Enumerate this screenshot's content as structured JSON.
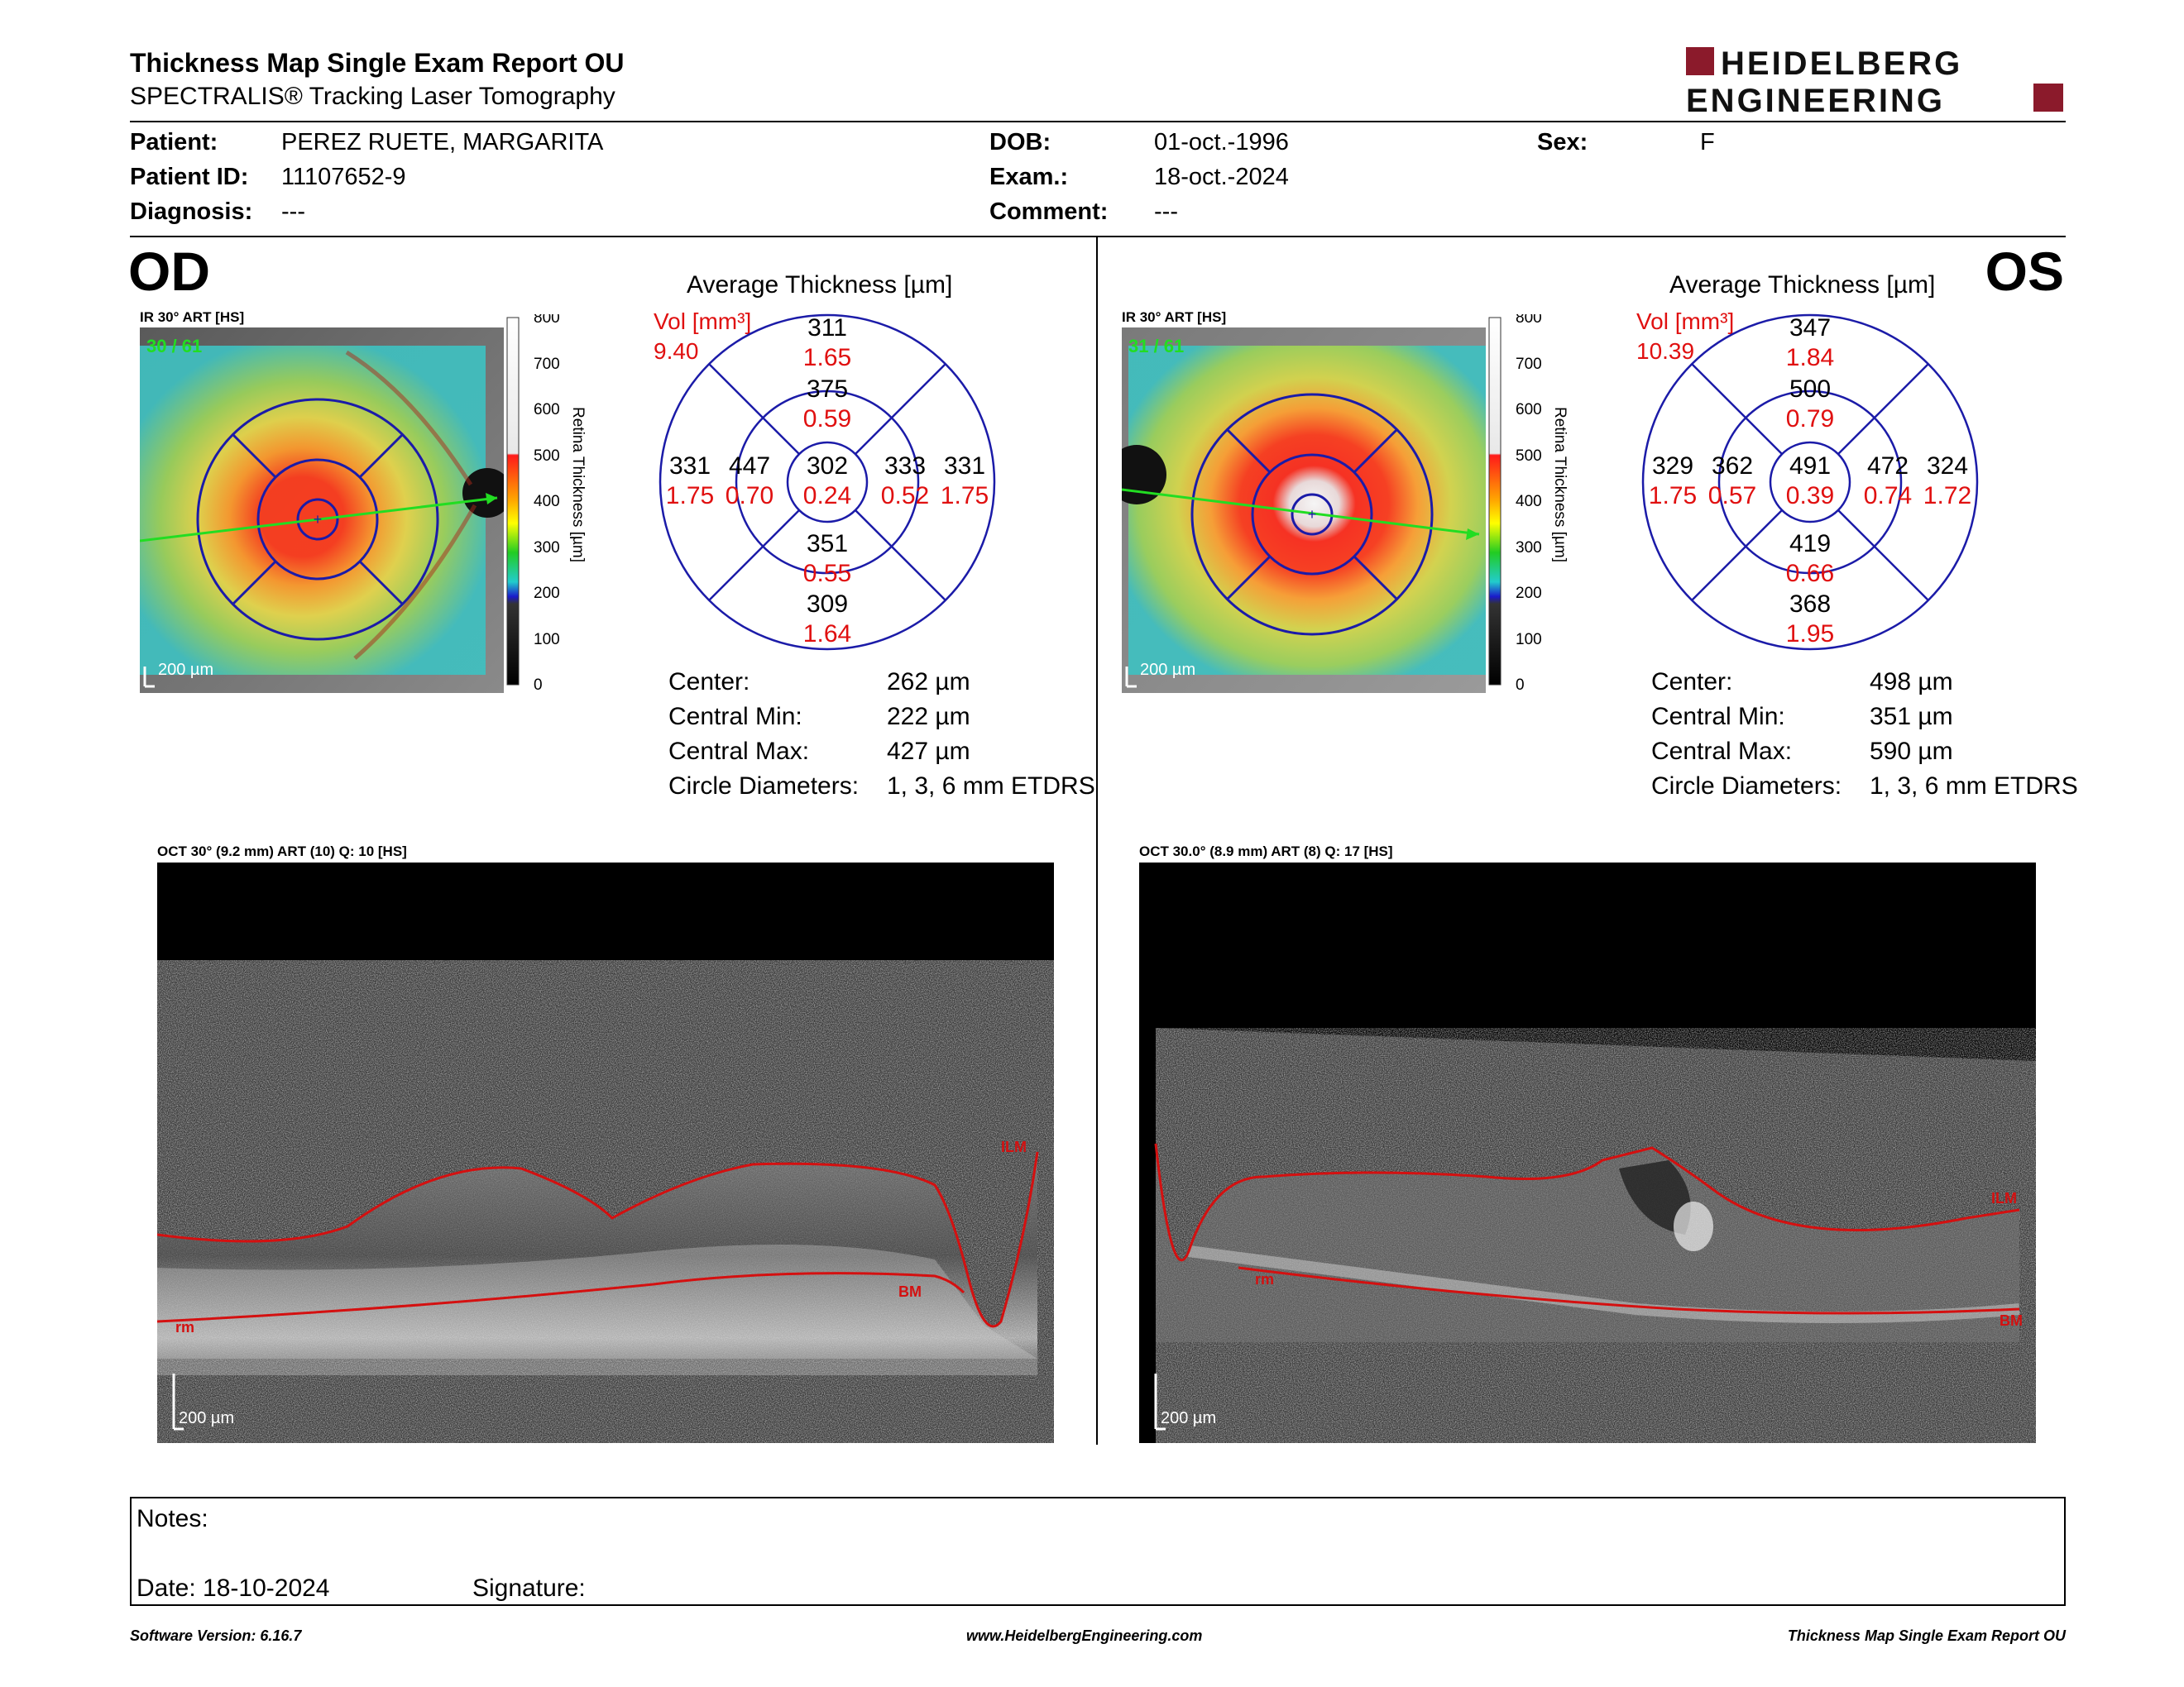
{
  "header": {
    "title": "Thickness Map Single Exam Report OU",
    "subtitle": "SPECTRALIS® Tracking Laser Tomography",
    "logo_line1": "HEIDELBERG",
    "logo_line2": "ENGINEERING",
    "brand_color": "#8b1a2b"
  },
  "patient": {
    "patient_label": "Patient:",
    "patient_value": "PEREZ RUETE, MARGARITA",
    "id_label": "Patient ID:",
    "id_value": "11107652-9",
    "diagnosis_label": "Diagnosis:",
    "diagnosis_value": "---",
    "dob_label": "DOB:",
    "dob_value": "01-oct.-1996",
    "exam_label": "Exam.:",
    "exam_value": "18-oct.-2024",
    "comment_label": "Comment:",
    "comment_value": "---",
    "sex_label": "Sex:",
    "sex_value": "F"
  },
  "od": {
    "eye_label": "OD",
    "ir_label": "IR 30° ART [HS]",
    "frame_label": "30 / 61",
    "scale_label": "200 µm",
    "avg_title": "Average Thickness [µm]",
    "vol_label": "Vol [mm³]",
    "vol_value": "9.40",
    "grid": {
      "outer_top": "311",
      "outer_top_vol": "1.65",
      "inner_top": "375",
      "inner_top_vol": "0.59",
      "outer_left": "331",
      "outer_left_vol": "1.75",
      "inner_left": "447",
      "inner_left_vol": "0.70",
      "center": "302",
      "center_vol": "0.24",
      "inner_right": "333",
      "inner_right_vol": "0.52",
      "outer_right": "331",
      "outer_right_vol": "1.75",
      "inner_bottom": "351",
      "inner_bottom_vol": "0.55",
      "outer_bottom": "309",
      "outer_bottom_vol": "1.64"
    },
    "stats": {
      "center_label": "Center:",
      "center_value": "262 µm",
      "min_label": "Central Min:",
      "min_value": "222 µm",
      "max_label": "Central Max:",
      "max_value": "427 µm",
      "diam_label": "Circle Diameters:",
      "diam_value": "1, 3, 6 mm ETDRS"
    },
    "oct_label": "OCT 30° (9.2 mm) ART (10) Q: 10 [HS]",
    "oct_scale": "200 µm",
    "ilm_label": "ILM",
    "bm_label": "BM",
    "rm_label": "rm"
  },
  "os": {
    "eye_label": "OS",
    "ir_label": "IR 30° ART [HS]",
    "frame_label": "31 / 61",
    "scale_label": "200 µm",
    "avg_title": "Average Thickness [µm]",
    "vol_label": "Vol [mm³]",
    "vol_value": "10.39",
    "grid": {
      "outer_top": "347",
      "outer_top_vol": "1.84",
      "inner_top": "500",
      "inner_top_vol": "0.79",
      "outer_left": "329",
      "outer_left_vol": "1.75",
      "inner_left": "362",
      "inner_left_vol": "0.57",
      "center": "491",
      "center_vol": "0.39",
      "inner_right": "472",
      "inner_right_vol": "0.74",
      "outer_right": "324",
      "outer_right_vol": "1.72",
      "inner_bottom": "419",
      "inner_bottom_vol": "0.66",
      "outer_bottom": "368",
      "outer_bottom_vol": "1.95"
    },
    "stats": {
      "center_label": "Center:",
      "center_value": "498 µm",
      "min_label": "Central Min:",
      "min_value": "351 µm",
      "max_label": "Central Max:",
      "max_value": "590 µm",
      "diam_label": "Circle Diameters:",
      "diam_value": "1, 3, 6 mm ETDRS"
    },
    "oct_label": "OCT 30.0° (8.9 mm) ART (8) Q: 17 [HS]",
    "oct_scale": "200 µm",
    "ilm_label": "ILM",
    "bm_label": "BM",
    "rm_label": "rm"
  },
  "colorbar": {
    "title": "Retina Thickness [µm]",
    "ticks": [
      "800",
      "700",
      "600",
      "500",
      "400",
      "300",
      "200",
      "100",
      "0"
    ]
  },
  "notes": {
    "notes_label": "Notes:",
    "date_label": "Date: 18-10-2024",
    "signature_label": "Signature:"
  },
  "footer": {
    "software": "Software Version: 6.16.7",
    "website": "www.HeidelbergEngineering.com",
    "report": "Thickness Map Single Exam Report OU"
  }
}
